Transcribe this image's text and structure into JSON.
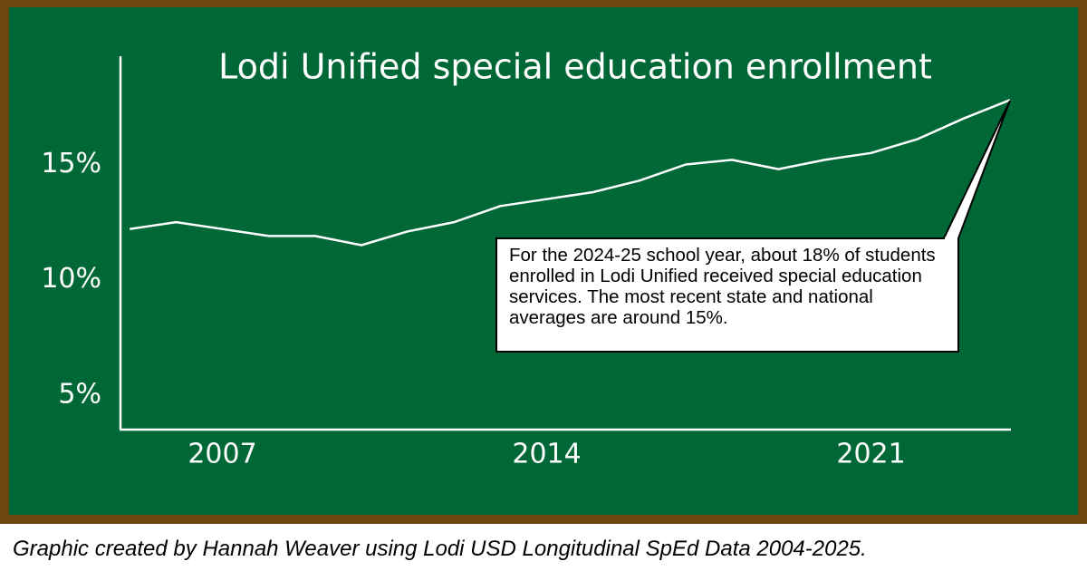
{
  "chart_data": {
    "type": "line",
    "title": "Lodi Unified special education enrollment",
    "annotation": "For the 2024-25 school year, about 18% of students enrolled in Lodi Unified received special education services. The most recent state and national averages are around 15%.",
    "caption": "Graphic created by Hannah Weaver using Lodi USD Longitudinal SpEd Data 2004-2025.",
    "x": [
      2005,
      2006,
      2007,
      2008,
      2009,
      2010,
      2011,
      2012,
      2013,
      2014,
      2015,
      2016,
      2017,
      2018,
      2019,
      2020,
      2021,
      2022,
      2023,
      2024
    ],
    "series": [
      {
        "name": "Special education enrollment",
        "color": "#ffffff",
        "values": [
          12.2,
          12.5,
          12.2,
          11.9,
          11.9,
          11.5,
          12.1,
          12.5,
          13.2,
          13.5,
          13.8,
          14.3,
          15.0,
          15.2,
          14.8,
          15.2,
          15.5,
          16.1,
          17.0,
          17.8
        ]
      }
    ],
    "xlim": [
      2004.8,
      2024
    ],
    "xticks": [
      2007,
      2014,
      2021
    ],
    "ylim": [
      3.5,
      19.7
    ],
    "yticks": [
      {
        "value": 5,
        "label": "5%"
      },
      {
        "value": 10,
        "label": "10%"
      },
      {
        "value": 15,
        "label": "15%"
      }
    ],
    "grid": false
  }
}
